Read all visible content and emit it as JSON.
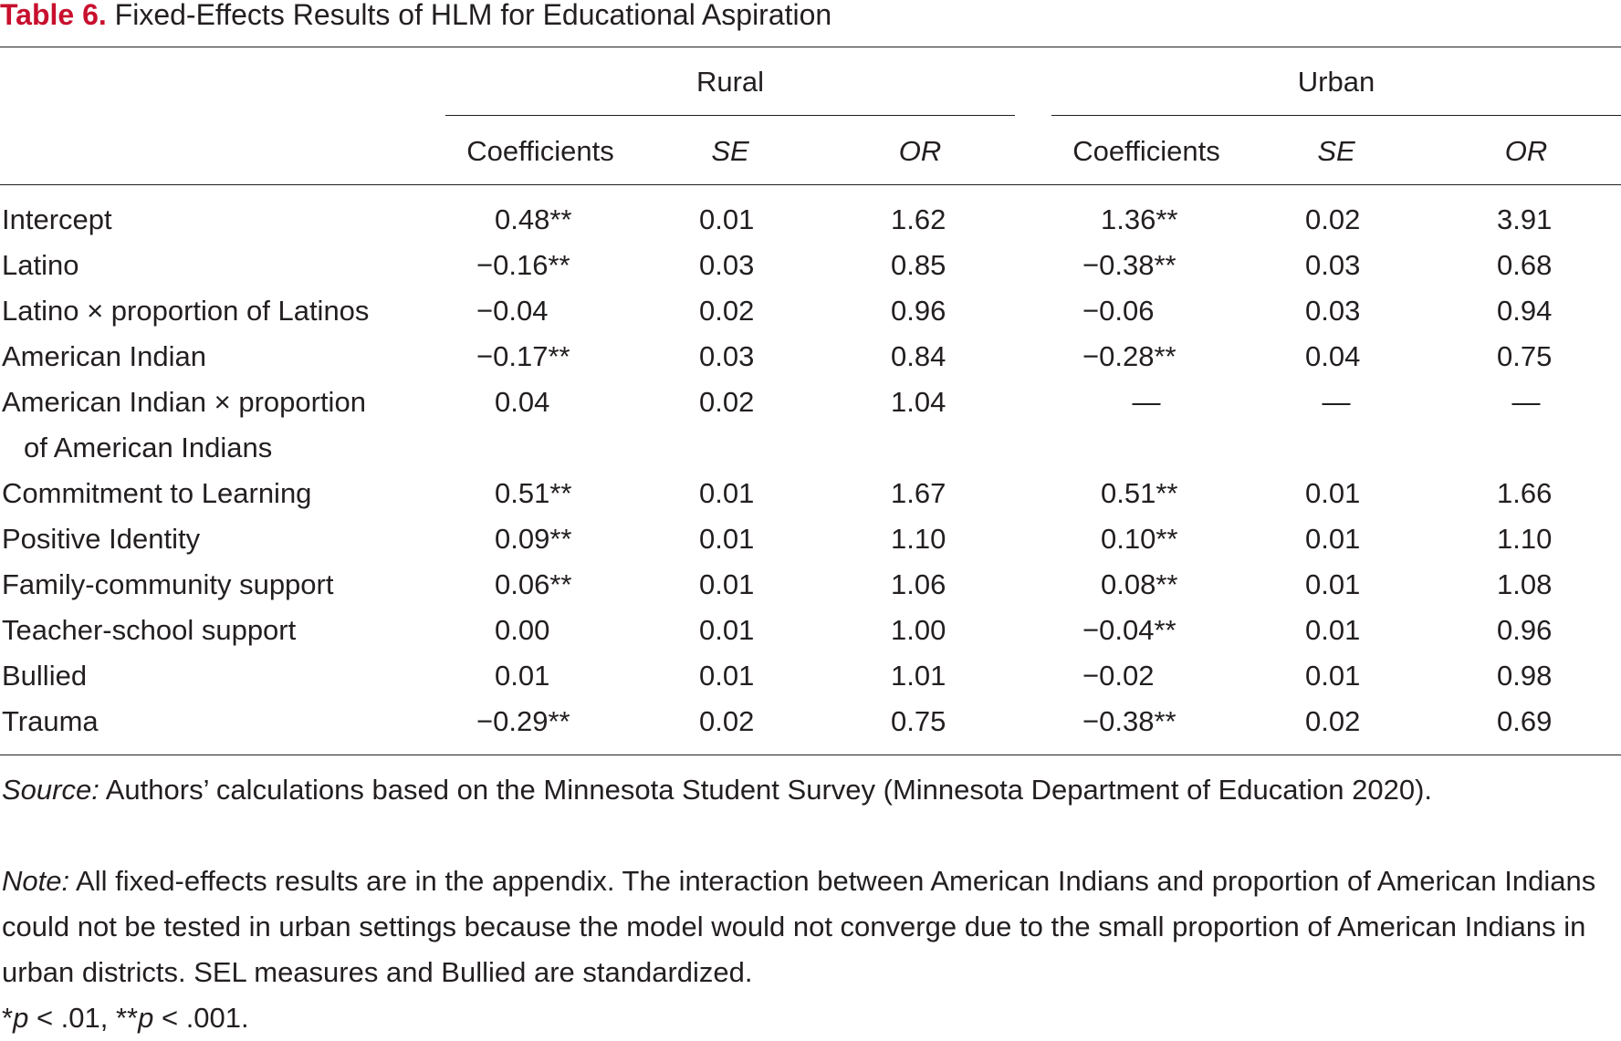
{
  "table": {
    "label": "Table 6.",
    "caption": "Fixed-Effects Results of HLM for Educational Aspiration",
    "groups": [
      "Rural",
      "Urban"
    ],
    "columns": [
      "Coefficients",
      "SE",
      "OR",
      "Coefficients",
      "SE",
      "OR"
    ],
    "rows": [
      {
        "label": "Intercept",
        "cont": "",
        "values": [
          "0.48**",
          "0.01",
          "1.62",
          "1.36**",
          "0.02",
          "3.91"
        ]
      },
      {
        "label": "Latino",
        "cont": "",
        "values": [
          "−0.16**",
          "0.03",
          "0.85",
          "−0.38**",
          "0.03",
          "0.68"
        ]
      },
      {
        "label": "Latino × proportion of Latinos",
        "cont": "",
        "values": [
          "−0.04",
          "0.02",
          "0.96",
          "−0.06",
          "0.03",
          "0.94"
        ]
      },
      {
        "label": "American Indian",
        "cont": "",
        "values": [
          "−0.17**",
          "0.03",
          "0.84",
          "−0.28**",
          "0.04",
          "0.75"
        ]
      },
      {
        "label": "American Indian × proportion",
        "cont": "of American Indians",
        "values": [
          "0.04",
          "0.02",
          "1.04",
          "—",
          "—",
          "—"
        ]
      },
      {
        "label": "Commitment to Learning",
        "cont": "",
        "values": [
          "0.51**",
          "0.01",
          "1.67",
          "0.51**",
          "0.01",
          "1.66"
        ]
      },
      {
        "label": "Positive Identity",
        "cont": "",
        "values": [
          "0.09**",
          "0.01",
          "1.10",
          "0.10**",
          "0.01",
          "1.10"
        ]
      },
      {
        "label": "Family-community support",
        "cont": "",
        "values": [
          "0.06**",
          "0.01",
          "1.06",
          "0.08**",
          "0.01",
          "1.08"
        ]
      },
      {
        "label": "Teacher-school support",
        "cont": "",
        "values": [
          "0.00",
          "0.01",
          "1.00",
          "−0.04**",
          "0.01",
          "0.96"
        ]
      },
      {
        "label": "Bullied",
        "cont": "",
        "values": [
          "0.01",
          "0.01",
          "1.01",
          "−0.02",
          "0.01",
          "0.98"
        ]
      },
      {
        "label": "Trauma",
        "cont": "",
        "values": [
          "−0.29**",
          "0.02",
          "0.75",
          "−0.38**",
          "0.02",
          "0.69"
        ]
      }
    ]
  },
  "notes": {
    "source_lead": "Source:",
    "source_text": "Authors’ calculations based on the Minnesota Student Survey (Minnesota Department of Education 2020).",
    "note_lead": "Note:",
    "note_text": "All fixed-effects results are in the appendix. The interaction between American Indians and proportion of American Indians could not be tested in urban settings because the model would not converge due to the small proportion of American Indians in urban districts. SEL measures and Bullied are standardized.",
    "sig_p1": "p",
    "sig_mid": " < .01, **",
    "sig_p2": "p",
    "sig_end": " < .001.",
    "sig_star": "*"
  }
}
